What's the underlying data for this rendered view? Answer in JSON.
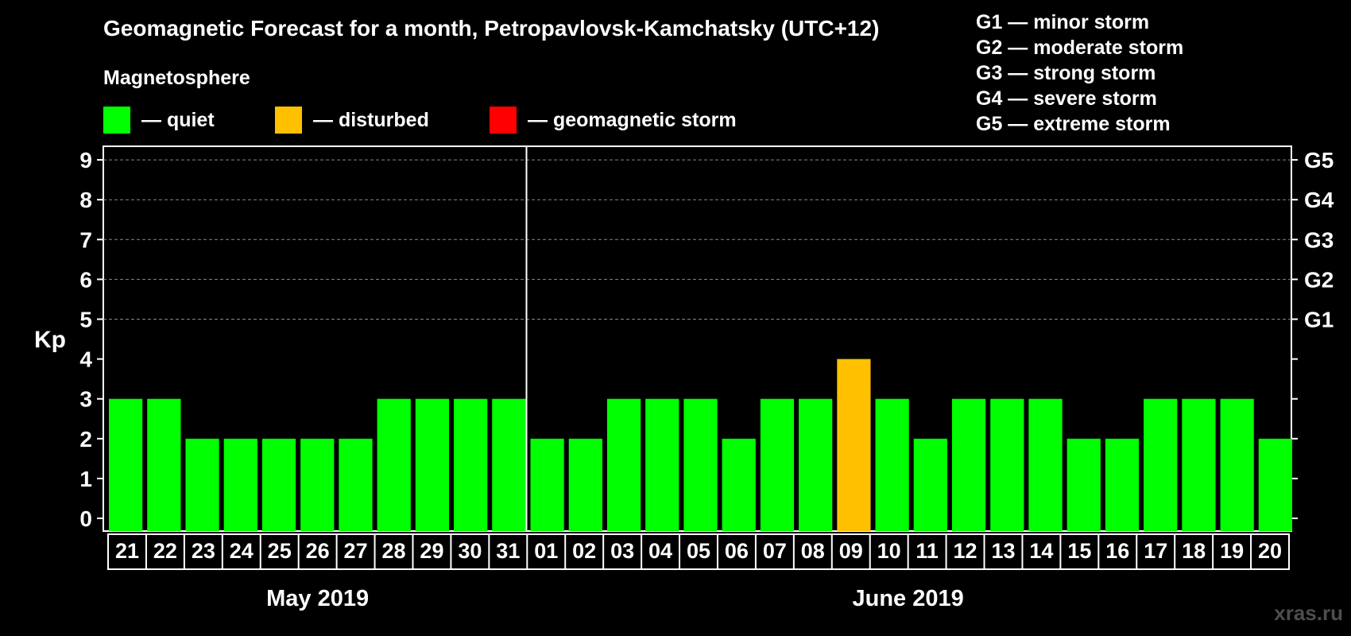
{
  "chart_data": {
    "type": "bar",
    "title": "Geomagnetic Forecast for a month, Petropavlovsk-Kamchatsky (UTC+12)",
    "section_label": "Magnetosphere",
    "ylabel": "Kp",
    "ylim": [
      0,
      9.3
    ],
    "yticks": [
      "0",
      "1",
      "2",
      "3",
      "4",
      "5",
      "6",
      "7",
      "8",
      "9"
    ],
    "right_ticks": [
      {
        "kp": 5,
        "label": "G1"
      },
      {
        "kp": 6,
        "label": "G2"
      },
      {
        "kp": 7,
        "label": "G3"
      },
      {
        "kp": 8,
        "label": "G4"
      },
      {
        "kp": 9,
        "label": "G5"
      }
    ],
    "categories": [
      "21",
      "22",
      "23",
      "24",
      "25",
      "26",
      "27",
      "28",
      "29",
      "30",
      "31",
      "01",
      "02",
      "03",
      "04",
      "05",
      "06",
      "07",
      "08",
      "09",
      "10",
      "11",
      "12",
      "13",
      "14",
      "15",
      "16",
      "17",
      "18",
      "19",
      "20"
    ],
    "values": [
      3,
      3,
      2,
      2,
      2,
      2,
      2,
      3,
      3,
      3,
      3,
      2,
      2,
      3,
      3,
      3,
      2,
      3,
      3,
      4,
      3,
      2,
      3,
      3,
      3,
      2,
      2,
      3,
      3,
      3,
      2
    ],
    "months": [
      {
        "label": "May 2019",
        "count": 11
      },
      {
        "label": "June 2019",
        "count": 20
      }
    ],
    "legend": [
      {
        "label": "— quiet",
        "color": "#00ff00"
      },
      {
        "label": "— disturbed",
        "color": "#ffc000"
      },
      {
        "label": "— geomagnetic storm",
        "color": "#ff0000"
      }
    ],
    "storm_legend": [
      "G1 — minor storm",
      "G2 — moderate storm",
      "G3 — strong storm",
      "G4 — severe storm",
      "G5 — extreme storm"
    ],
    "colors": {
      "quiet": "#00ff00",
      "disturbed": "#ffc000",
      "storm": "#ff0000",
      "grid": "#888888"
    }
  },
  "watermark": "xras.ru"
}
